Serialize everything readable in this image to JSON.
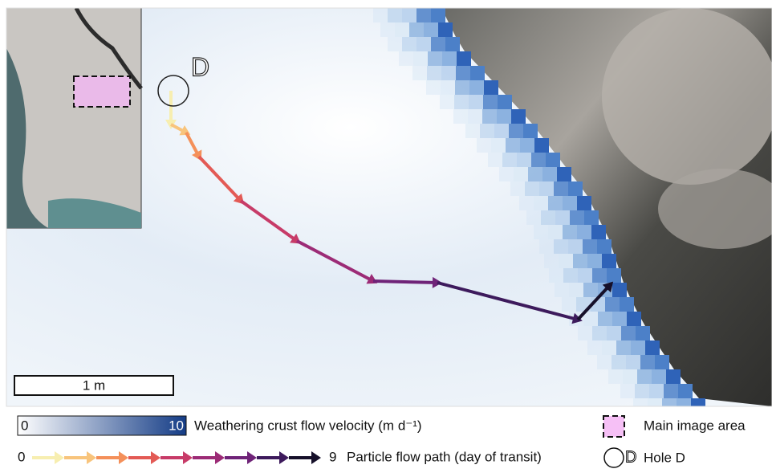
{
  "map": {
    "hole_label": "D",
    "scale_bar": "1 m"
  },
  "legend": {
    "velocity": {
      "min": 0,
      "max": 10,
      "label": "Weathering crust flow velocity (m d⁻¹)"
    },
    "path": {
      "start": 0,
      "end": 9,
      "label": "Particle flow path (day of transit)"
    },
    "main_image_area": "Main image area",
    "hole": "Hole D"
  }
}
